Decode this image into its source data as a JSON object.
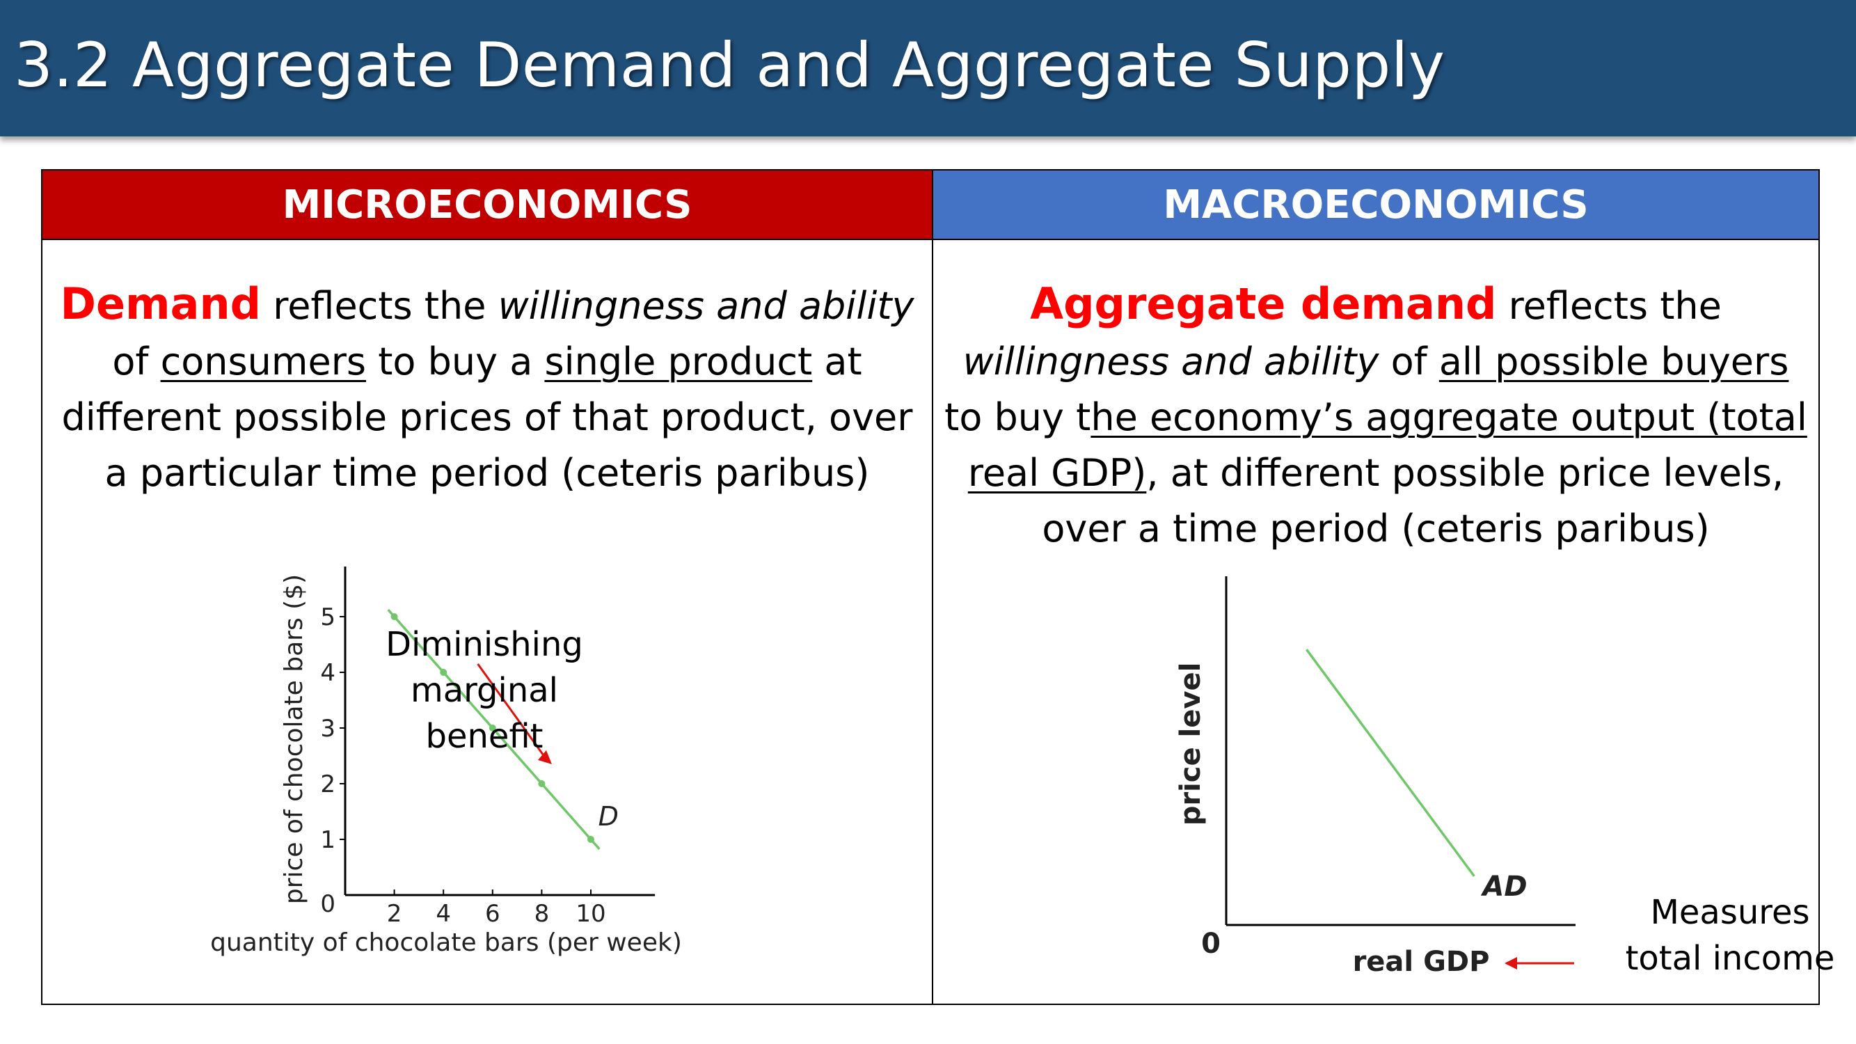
{
  "slide_title": "3.2 Aggregate Demand and Aggregate Supply",
  "micro": {
    "header": "MICROECONOMICS",
    "p1_kw": "Demand",
    "p1_a": " reflects the ",
    "p1_b": "willingness and ability",
    "p2_a": "of ",
    "p2_b": "consumers",
    "p2_c": " to buy a ",
    "p2_d": "single product",
    "p2_e": " at",
    "p3": "different possible prices of that product, over",
    "p4": "a particular time period (ceteris paribus)",
    "note_lines": [
      "Diminishing",
      "marginal",
      "benefit"
    ]
  },
  "macro": {
    "header": "MACROECONOMICS",
    "p1_kw": "Aggregate demand",
    "p1_a": " reflects the",
    "p2_a": "willingness and ability",
    "p2_b": " of ",
    "p2_c": "all possible buyers",
    "p3_a": "to buy t",
    "p3_b": "he economy’s aggregate output (total",
    "p4_a": "real GDP)",
    "p4_b": ", at different possible price levels,",
    "p5": "over a time period (ceteris paribus)",
    "note_lines": [
      "Measures",
      "total income"
    ]
  },
  "colors": {
    "title_bar": "#1f4e79",
    "micro_header": "#c00000",
    "macro_header": "#4472c4",
    "curve": "#70c76a",
    "arrow": "#e01010"
  },
  "chart_data": [
    {
      "type": "line",
      "xlabel": "quantity of chocolate bars (per week)",
      "ylabel": "price of chocolate bars ($)",
      "x_ticks": [
        "2",
        "4",
        "6",
        "8",
        "10"
      ],
      "y_ticks": [
        "1",
        "2",
        "3",
        "4",
        "5"
      ],
      "origin_label": "0",
      "xlim": [
        0,
        13
      ],
      "ylim": [
        0,
        5.9
      ],
      "series": [
        {
          "name": "D",
          "x": [
            2,
            4,
            6,
            8,
            10
          ],
          "y": [
            5,
            4,
            3,
            2,
            1
          ]
        }
      ],
      "curve_label": "D"
    },
    {
      "type": "line",
      "xlabel": "real GDP",
      "ylabel": "price level",
      "origin_label": "0",
      "series": [
        {
          "name": "AD",
          "x": [
            0.23,
            0.71
          ],
          "y": [
            0.79,
            0.14
          ]
        }
      ],
      "curve_label": "AD"
    }
  ]
}
